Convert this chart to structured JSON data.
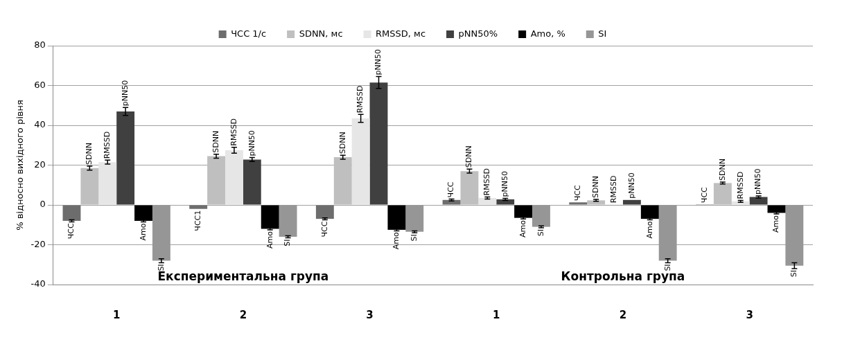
{
  "chart_data": {
    "type": "bar",
    "ylabel": "% відносно вихідного рівня",
    "categories": [
      "1",
      "2",
      "3",
      "1",
      "2",
      "3"
    ],
    "annotations": [
      "Експериментальна група",
      "Контрольна група"
    ],
    "ylim": [
      -40,
      80
    ],
    "yticks": [
      -40,
      -20,
      0,
      20,
      40,
      60,
      80
    ],
    "grid": "y",
    "legend": "top",
    "series": [
      {
        "name": "ЧСС 1/с",
        "color": "#6d6d6d",
        "values": [
          -8,
          -2,
          -7,
          2.5,
          1.3,
          0.3
        ],
        "errors": [
          0.5,
          null,
          0.5,
          0.5,
          null,
          null
        ],
        "value_labels": [
          "ЧСС",
          "ЧСС1",
          "ЧСС",
          "ЧСС",
          "ЧСС",
          "ЧСС"
        ]
      },
      {
        "name": "SDNN, мс",
        "color": "#bfbfbf",
        "values": [
          18.5,
          24.5,
          24,
          17,
          2.3,
          11
        ],
        "errors": [
          1,
          1,
          1,
          1,
          0.5,
          0.5
        ],
        "value_labels": [
          "SDNN",
          "SDNN",
          "SDNN",
          "SDNN",
          "SDNN",
          "SDNN"
        ]
      },
      {
        "name": "RMSSD, мс",
        "color": "#e6e6e6",
        "values": [
          21.5,
          27.5,
          43.5,
          3.5,
          0.3,
          1.8
        ],
        "errors": [
          1,
          1.5,
          2,
          0.5,
          null,
          0.5
        ],
        "value_labels": [
          "RMSSD",
          "RMSSD",
          "RMSSD",
          "RMSSD",
          "RMSSD",
          "RMSSD"
        ]
      },
      {
        "name": "pNN50%",
        "color": "#404040",
        "values": [
          47,
          22.8,
          61.5,
          2.8,
          2.5,
          4
        ],
        "errors": [
          2,
          1,
          3,
          0.5,
          null,
          0.5
        ],
        "value_labels": [
          "pNN50",
          "pNN50",
          "pNN50",
          "pNN50",
          "pNN50",
          "pNN50"
        ]
      },
      {
        "name": "Amo, %",
        "color": "#000000",
        "values": [
          -8,
          -12,
          -12.5,
          -6.5,
          -7,
          -4
        ],
        "errors": [
          0.5,
          0.5,
          0.5,
          0.5,
          0.5,
          0.5
        ],
        "value_labels": [
          "Amo",
          "Amo",
          "Amo",
          "Amo",
          "Amo",
          "Amo"
        ]
      },
      {
        "name": "SI",
        "color": "#969696",
        "values": [
          -28,
          -16,
          -13.5,
          -11,
          -28,
          -30.5
        ],
        "errors": [
          1,
          0.5,
          0.5,
          0.5,
          1,
          1.5
        ],
        "value_labels": [
          "SI",
          "SI",
          "SI",
          "SI",
          "SI",
          "SI"
        ]
      }
    ]
  }
}
